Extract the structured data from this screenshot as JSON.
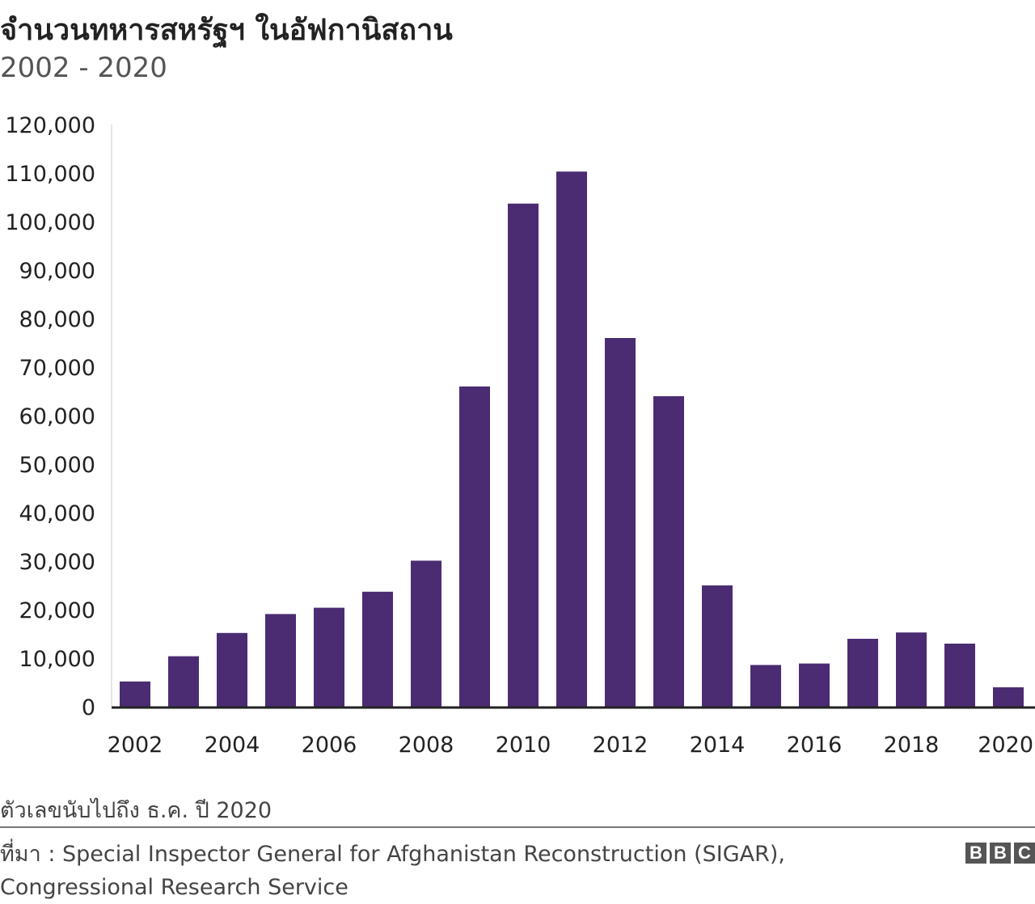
{
  "header": {
    "title": "จำนวนทหารสหรัฐฯ ในอัฟกานิสถาน",
    "subtitle": "2002 - 2020"
  },
  "footer": {
    "note": "ตัวเลขนับไปถึง ธ.ค. ปี 2020",
    "source_line1": "ที่มา : Special Inspector General for Afghanistan Reconstruction (SIGAR),",
    "source_line2": "Congressional Research Service",
    "logo_letters": [
      "B",
      "B",
      "C"
    ]
  },
  "colors": {
    "bar": "#4b2c72",
    "axis": "#222222",
    "text": "#222222"
  },
  "chart_data": {
    "type": "bar",
    "title": "จำนวนทหารสหรัฐฯ ในอัฟกานิสถาน",
    "subtitle": "2002 - 2020",
    "xlabel": "",
    "ylabel": "",
    "categories": [
      "2002",
      "2003",
      "2004",
      "2005",
      "2006",
      "2007",
      "2008",
      "2009",
      "2010",
      "2011",
      "2012",
      "2013",
      "2014",
      "2015",
      "2016",
      "2017",
      "2018",
      "2019",
      "2020"
    ],
    "values": [
      5200,
      10400,
      15200,
      19100,
      20400,
      23700,
      30100,
      66000,
      103700,
      110300,
      76000,
      64000,
      25000,
      8600,
      8900,
      14000,
      15300,
      13000,
      4000
    ],
    "x_tick_labels": [
      "2002",
      "2004",
      "2006",
      "2008",
      "2010",
      "2012",
      "2014",
      "2016",
      "2018",
      "2020"
    ],
    "y_ticks": [
      0,
      10000,
      20000,
      30000,
      40000,
      50000,
      60000,
      70000,
      80000,
      90000,
      100000,
      110000,
      120000
    ],
    "y_tick_labels": [
      "0",
      "10,000",
      "20,000",
      "30,000",
      "40,000",
      "50,000",
      "60,000",
      "70,000",
      "80,000",
      "90,000",
      "100,000",
      "110,000",
      "120,000"
    ],
    "ylim": [
      0,
      120000
    ],
    "grid": false,
    "legend": "none"
  }
}
